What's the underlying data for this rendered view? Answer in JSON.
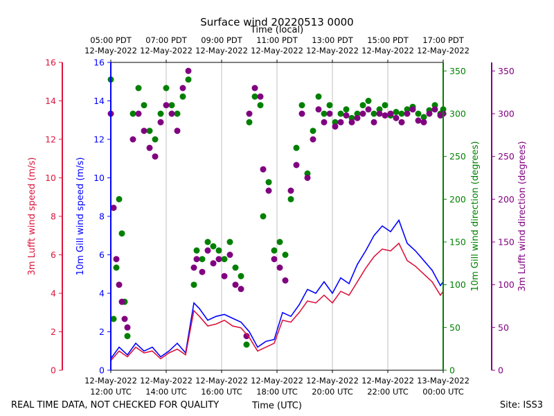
{
  "chart_data": {
    "type": "scatter",
    "title": "Surface wind 20220513 0000",
    "xlabel": "Time (UTC)",
    "x2label": "Time (local)",
    "footer_left": "REAL TIME DATA, NOT CHECKED FOR QUALITY",
    "footer_right": "Site: ISS3",
    "xlim_hours_utc": [
      12,
      24
    ],
    "x_ticks_utc": [
      {
        "hour": 12,
        "date": "12-May-2022",
        "time": "12:00 UTC"
      },
      {
        "hour": 14,
        "date": "12-May-2022",
        "time": "14:00 UTC"
      },
      {
        "hour": 16,
        "date": "12-May-2022",
        "time": "16:00 UTC"
      },
      {
        "hour": 18,
        "date": "12-May-2022",
        "time": "18:00 UTC"
      },
      {
        "hour": 20,
        "date": "12-May-2022",
        "time": "20:00 UTC"
      },
      {
        "hour": 22,
        "date": "12-May-2022",
        "time": "22:00 UTC"
      },
      {
        "hour": 24,
        "date": "13-May-2022",
        "time": "00:00 UTC"
      }
    ],
    "x_ticks_local": [
      {
        "hour": 12,
        "time": "05:00 PDT",
        "date": "12-May-2022"
      },
      {
        "hour": 14,
        "time": "07:00 PDT",
        "date": "12-May-2022"
      },
      {
        "hour": 16,
        "time": "09:00 PDT",
        "date": "12-May-2022"
      },
      {
        "hour": 18,
        "time": "11:00 PDT",
        "date": "12-May-2022"
      },
      {
        "hour": 20,
        "time": "13:00 PDT",
        "date": "12-May-2022"
      },
      {
        "hour": 22,
        "time": "15:00 PDT",
        "date": "12-May-2022"
      },
      {
        "hour": 24,
        "time": "17:00 PDT",
        "date": "12-May-2022"
      }
    ],
    "axes": {
      "lufft_speed": {
        "label": "3m Lufft wind speed (m/s)",
        "lim": [
          0,
          16
        ],
        "ticks": [
          0,
          2,
          4,
          6,
          8,
          10,
          12,
          14,
          16
        ],
        "color": "#dc143c"
      },
      "gill_speed": {
        "label": "10m Gill wind speed (m/s)",
        "lim": [
          0,
          16
        ],
        "ticks": [
          0,
          2,
          4,
          6,
          8,
          10,
          12,
          14,
          16
        ],
        "color": "#0000ff"
      },
      "gill_dir": {
        "label": "10m Gill wind direction (degrees)",
        "lim": [
          0,
          360
        ],
        "ticks": [
          0,
          50,
          100,
          150,
          200,
          250,
          300,
          350
        ],
        "color": "#008000"
      },
      "lufft_dir": {
        "label": "3m Lufft wind direction (degrees)",
        "lim": [
          0,
          360
        ],
        "ticks": [
          0,
          50,
          100,
          150,
          200,
          250,
          300,
          350
        ],
        "color": "#800080"
      }
    },
    "series": [
      {
        "name": "10m Gill wind speed",
        "kind": "line",
        "axis": "gill_speed",
        "color": "#0000ff",
        "x": [
          12.0,
          12.3,
          12.6,
          12.9,
          13.2,
          13.5,
          13.8,
          14.1,
          14.4,
          14.7,
          15.0,
          15.2,
          15.5,
          15.8,
          16.1,
          16.4,
          16.7,
          17.0,
          17.3,
          17.6,
          17.9,
          18.2,
          18.5,
          18.8,
          19.1,
          19.4,
          19.7,
          20.0,
          20.3,
          20.6,
          20.9,
          21.2,
          21.5,
          21.8,
          22.1,
          22.4,
          22.7,
          23.0,
          23.3,
          23.6,
          23.9,
          24.0
        ],
        "values": [
          0.6,
          1.2,
          0.8,
          1.4,
          1.0,
          1.2,
          0.7,
          1.0,
          1.4,
          0.9,
          3.5,
          3.2,
          2.6,
          2.8,
          2.9,
          2.7,
          2.5,
          2.0,
          1.2,
          1.5,
          1.6,
          3.0,
          2.8,
          3.4,
          4.2,
          4.0,
          4.6,
          4.0,
          4.8,
          4.5,
          5.5,
          6.2,
          7.0,
          7.5,
          7.2,
          7.8,
          6.6,
          6.2,
          5.7,
          5.2,
          4.4,
          4.6
        ]
      },
      {
        "name": "3m Lufft wind speed",
        "kind": "line",
        "axis": "lufft_speed",
        "color": "#dc143c",
        "x": [
          12.0,
          12.3,
          12.6,
          12.9,
          13.2,
          13.5,
          13.8,
          14.1,
          14.4,
          14.7,
          15.0,
          15.2,
          15.5,
          15.8,
          16.1,
          16.4,
          16.7,
          17.0,
          17.3,
          17.6,
          17.9,
          18.2,
          18.5,
          18.8,
          19.1,
          19.4,
          19.7,
          20.0,
          20.3,
          20.6,
          20.9,
          21.2,
          21.5,
          21.8,
          22.1,
          22.4,
          22.7,
          23.0,
          23.3,
          23.6,
          23.9,
          24.0
        ],
        "values": [
          0.5,
          1.0,
          0.7,
          1.2,
          0.9,
          1.0,
          0.6,
          0.9,
          1.1,
          0.8,
          3.1,
          2.8,
          2.3,
          2.4,
          2.6,
          2.3,
          2.2,
          1.7,
          1.0,
          1.2,
          1.4,
          2.6,
          2.5,
          3.0,
          3.6,
          3.5,
          3.9,
          3.5,
          4.1,
          3.9,
          4.6,
          5.3,
          5.9,
          6.3,
          6.2,
          6.6,
          5.7,
          5.4,
          5.0,
          4.6,
          3.9,
          4.1
        ]
      },
      {
        "name": "10m Gill wind direction",
        "kind": "scatter",
        "axis": "gill_dir",
        "color": "#008000",
        "x": [
          12.0,
          12.1,
          12.2,
          12.3,
          12.4,
          12.5,
          12.6,
          12.8,
          13.0,
          13.2,
          13.4,
          13.6,
          13.8,
          14.0,
          14.2,
          14.4,
          14.6,
          14.8,
          15.0,
          15.1,
          15.3,
          15.5,
          15.7,
          15.9,
          16.1,
          16.3,
          16.5,
          16.7,
          16.9,
          17.0,
          17.2,
          17.4,
          17.5,
          17.7,
          17.9,
          18.1,
          18.3,
          18.5,
          18.7,
          18.9,
          19.1,
          19.3,
          19.5,
          19.7,
          19.9,
          20.1,
          20.3,
          20.5,
          20.7,
          20.9,
          21.1,
          21.3,
          21.5,
          21.7,
          21.9,
          22.1,
          22.3,
          22.5,
          22.7,
          22.9,
          23.1,
          23.3,
          23.5,
          23.7,
          23.9,
          24.0
        ],
        "values": [
          340,
          60,
          120,
          200,
          160,
          80,
          40,
          300,
          330,
          310,
          280,
          270,
          300,
          330,
          310,
          300,
          320,
          340,
          100,
          140,
          130,
          150,
          145,
          140,
          130,
          150,
          120,
          110,
          30,
          290,
          320,
          310,
          180,
          220,
          140,
          150,
          135,
          200,
          260,
          310,
          230,
          280,
          320,
          300,
          310,
          290,
          300,
          305,
          295,
          300,
          310,
          315,
          300,
          305,
          310,
          298,
          302,
          300,
          305,
          308,
          300,
          296,
          304,
          310,
          300,
          305
        ]
      },
      {
        "name": "3m Lufft wind direction",
        "kind": "scatter",
        "axis": "lufft_dir",
        "color": "#800080",
        "x": [
          12.0,
          12.1,
          12.2,
          12.3,
          12.4,
          12.5,
          12.6,
          12.8,
          13.0,
          13.2,
          13.4,
          13.6,
          13.8,
          14.0,
          14.2,
          14.4,
          14.6,
          14.8,
          15.0,
          15.1,
          15.3,
          15.5,
          15.7,
          15.9,
          16.1,
          16.3,
          16.5,
          16.7,
          16.9,
          17.0,
          17.2,
          17.4,
          17.5,
          17.7,
          17.9,
          18.1,
          18.3,
          18.5,
          18.7,
          18.9,
          19.1,
          19.3,
          19.5,
          19.7,
          19.9,
          20.1,
          20.3,
          20.5,
          20.7,
          20.9,
          21.1,
          21.3,
          21.5,
          21.7,
          21.9,
          22.1,
          22.3,
          22.5,
          22.7,
          22.9,
          23.1,
          23.3,
          23.5,
          23.7,
          23.9,
          24.0
        ],
        "values": [
          300,
          190,
          130,
          100,
          80,
          60,
          50,
          270,
          300,
          280,
          260,
          250,
          290,
          310,
          300,
          280,
          330,
          350,
          120,
          130,
          115,
          140,
          125,
          130,
          110,
          135,
          100,
          95,
          40,
          300,
          330,
          320,
          235,
          210,
          130,
          120,
          105,
          210,
          240,
          300,
          225,
          270,
          305,
          290,
          300,
          285,
          290,
          298,
          290,
          295,
          300,
          305,
          290,
          300,
          298,
          300,
          295,
          290,
          300,
          305,
          292,
          290,
          300,
          305,
          298,
          300
        ]
      }
    ]
  }
}
